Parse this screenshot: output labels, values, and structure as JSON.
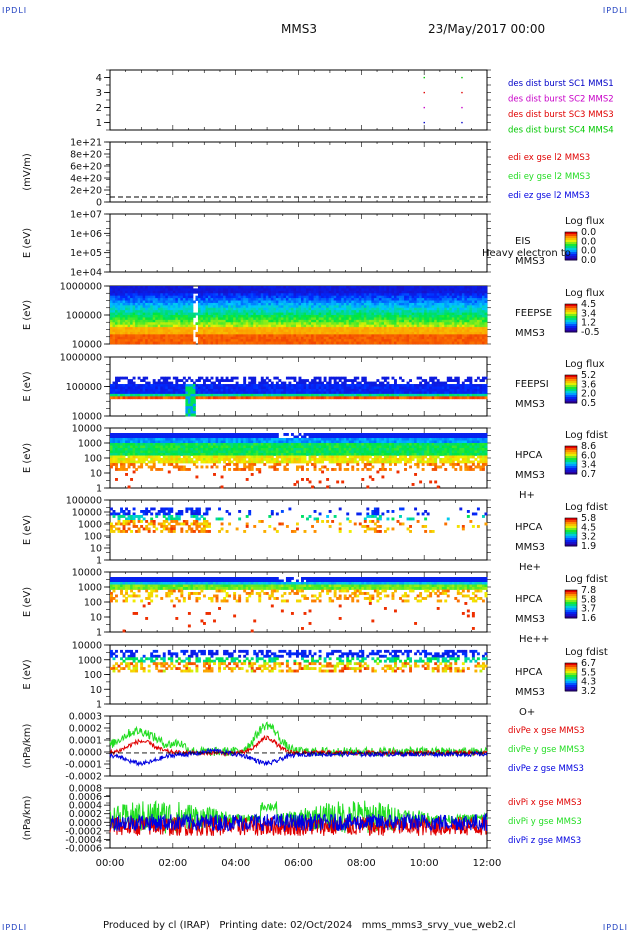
{
  "header": {
    "corner_label": "IPDLI",
    "title": "MMS3",
    "date": "23/May/2017 00:00"
  },
  "footer": {
    "text": "Produced by cl (IRAP)   Printing date: 02/Oct/2024   mms_mms3_srvy_vue_web2.cl"
  },
  "colors": {
    "mms1": "#0000c8",
    "mms2": "#c800c8",
    "mms3": "#e00000",
    "mms4": "#00c800",
    "x": "#e00000",
    "y": "#22dd22",
    "z": "#0000e0"
  },
  "chart_data": [
    {
      "type": "scatter",
      "id": "burst",
      "ylabel": "",
      "yticks": [
        "1",
        "2",
        "3",
        "4"
      ],
      "legend": [
        "des dist burst SC1 MMS1",
        "des dist burst SC2 MMS2",
        "des dist burst SC3 MMS3",
        "des dist burst SC4 MMS4"
      ],
      "series": [
        {
          "name": "des dist burst SC1 MMS1",
          "x": [
            10.0,
            11.2
          ],
          "y": 1
        },
        {
          "name": "des dist burst SC2 MMS2",
          "x": [
            10.0,
            11.2
          ],
          "y": 2
        },
        {
          "name": "des dist burst SC3 MMS3",
          "x": [
            10.0,
            11.2
          ],
          "y": 3
        },
        {
          "name": "des dist burst SC4 MMS4",
          "x": [
            10.0,
            11.2
          ],
          "y": 4
        }
      ],
      "ylim": [
        0.5,
        4.5
      ]
    },
    {
      "type": "line",
      "id": "edi",
      "ylabel": "(mV/m)",
      "yticks": [
        "0",
        "2e+20",
        "4e+20",
        "6e+20",
        "8e+20",
        "1e+21"
      ],
      "legend": [
        "edi ex gse l2 MMS3",
        "edi ey gse l2 MMS3",
        "edi ez gse l2 MMS3"
      ]
    },
    {
      "type": "heatmap",
      "id": "eis",
      "ylabel": "E (eV)",
      "yticks": [
        "1e+04",
        "1e+05",
        "1e+06",
        "1e+07"
      ],
      "label_lines": [
        "EIS",
        "MMS3"
      ],
      "overlay_text": "Heavy electron to",
      "scale_title": "Log flux",
      "scale_values": [
        "0.0",
        "0.0",
        "0.0",
        "0.0"
      ]
    },
    {
      "type": "heatmap",
      "id": "feepse",
      "ylabel": "E (eV)",
      "yticks": [
        "10000",
        "100000",
        "1000000"
      ],
      "label_lines": [
        "FEEPSE",
        "MMS3"
      ],
      "scale_title": "Log flux",
      "scale_values": [
        "4.5",
        "3.4",
        "1.2",
        "-0.5"
      ]
    },
    {
      "type": "heatmap",
      "id": "feepsi",
      "ylabel": "E (eV)",
      "yticks": [
        "10000",
        "100000",
        "1000000"
      ],
      "label_lines": [
        "FEEPSI",
        "MMS3"
      ],
      "scale_title": "Log flux",
      "scale_values": [
        "5.2",
        "3.6",
        "2.0",
        "0.5"
      ]
    },
    {
      "type": "heatmap",
      "id": "hpca_h",
      "ylabel": "E (eV)",
      "yticks": [
        "1",
        "10",
        "100",
        "1000",
        "10000"
      ],
      "label_lines": [
        "HPCA",
        "MMS3",
        "H+"
      ],
      "scale_title": "Log fdist",
      "scale_values": [
        "8.6",
        "6.0",
        "3.4",
        "0.7"
      ]
    },
    {
      "type": "heatmap",
      "id": "hpca_he",
      "ylabel": "E (eV)",
      "yticks": [
        "1",
        "10",
        "100",
        "1000",
        "10000",
        "100000"
      ],
      "label_lines": [
        "HPCA",
        "MMS3",
        "He+"
      ],
      "scale_title": "Log fdist",
      "scale_values": [
        "5.8",
        "4.5",
        "3.2",
        "1.9"
      ]
    },
    {
      "type": "heatmap",
      "id": "hpca_he2",
      "ylabel": "E (eV)",
      "yticks": [
        "1",
        "10",
        "100",
        "1000",
        "10000"
      ],
      "label_lines": [
        "HPCA",
        "MMS3",
        "He++"
      ],
      "scale_title": "Log fdist",
      "scale_values": [
        "7.8",
        "5.8",
        "3.7",
        "1.6"
      ]
    },
    {
      "type": "heatmap",
      "id": "hpca_o",
      "ylabel": "E (eV)",
      "yticks": [
        "1",
        "10",
        "100",
        "1000",
        "10000"
      ],
      "label_lines": [
        "HPCA",
        "MMS3",
        "O+"
      ],
      "scale_title": "Log fdist",
      "scale_values": [
        "6.7",
        "5.5",
        "4.3",
        "3.2"
      ]
    },
    {
      "type": "line",
      "id": "divpe",
      "ylabel": "(nPa/km)",
      "yticks": [
        "-0.0002",
        "-0.0001",
        "0.0000",
        "0.0001",
        "0.0002",
        "0.0003"
      ],
      "ylim": [
        -0.0002,
        0.00032
      ],
      "legend": [
        "divPe x gse MMS3",
        "divPe y gse MMS3",
        "divPe z gse MMS3"
      ]
    },
    {
      "type": "line",
      "id": "divpi",
      "ylabel": "(nPa/km)",
      "yticks": [
        "-0.0006",
        "-0.0004",
        "-0.0002",
        "0.0000",
        "0.0002",
        "0.0004",
        "0.0006",
        "0.0008"
      ],
      "ylim": [
        -0.0006,
        0.0008
      ],
      "legend": [
        "divPi x gse MMS3",
        "divPi y gse MMS3",
        "divPi z gse MMS3"
      ]
    }
  ],
  "xaxis": {
    "ticks": [
      "00:00",
      "02:00",
      "04:00",
      "06:00",
      "08:00",
      "10:00",
      "12:00"
    ],
    "xlim": [
      0,
      12
    ]
  }
}
